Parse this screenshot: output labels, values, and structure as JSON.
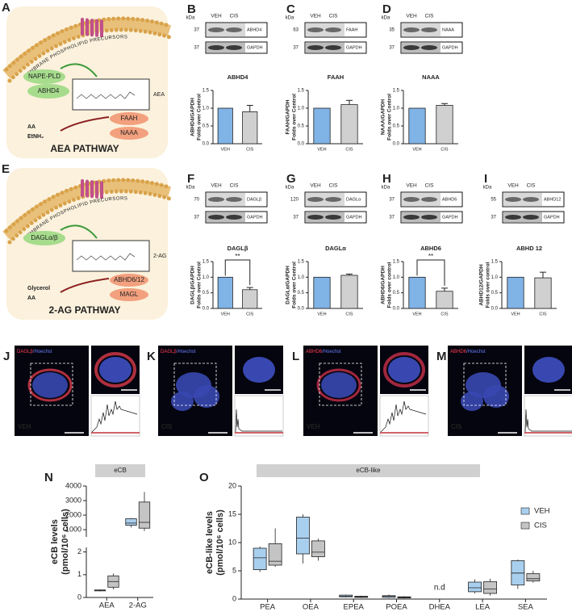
{
  "pathways": [
    {
      "panel": "A",
      "membrane": "MEMBRANE PHOSPHOLIPID PRECURSORS",
      "enzymes_synth": [
        "NAPE-PLD",
        "ABHD4"
      ],
      "product": "AEA",
      "enzymes_deg": [
        "FAAH",
        "NAAA"
      ],
      "metabolites": [
        "AA",
        "EtNH₂"
      ],
      "title": "AEA PATHWAY"
    },
    {
      "panel": "E",
      "membrane": "MEMBRANE PHOSPHOLIPID PRECURSORS",
      "enzymes_synth": [
        "DAGLα/β"
      ],
      "product": "2-AG",
      "enzymes_deg": [
        "ABHD6/12",
        "MAGL"
      ],
      "metabolites": [
        "Glycerol",
        "AA"
      ],
      "title": "2-AG PATHWAY"
    }
  ],
  "blots": [
    {
      "panel": "B",
      "kda": "kDa",
      "lanes": [
        "VEH",
        "CIS"
      ],
      "rows": [
        {
          "mw": "37",
          "protein": "ABHD4"
        },
        {
          "mw": "37",
          "protein": "GAPDH"
        }
      ]
    },
    {
      "panel": "C",
      "kda": "kDa",
      "lanes": [
        "VEH",
        "CIS"
      ],
      "rows": [
        {
          "mw": "63",
          "protein": "FAAH"
        },
        {
          "mw": "37",
          "protein": "GAPDH"
        }
      ]
    },
    {
      "panel": "D",
      "kda": "kDa",
      "lanes": [
        "VEH",
        "CIS"
      ],
      "rows": [
        {
          "mw": "35",
          "protein": "NAAA"
        },
        {
          "mw": "37",
          "protein": "GAPDH"
        }
      ]
    },
    {
      "panel": "F",
      "kda": "kDa",
      "lanes": [
        "VEH",
        "CIS"
      ],
      "rows": [
        {
          "mw": "70",
          "protein": "DAGLβ"
        },
        {
          "mw": "37",
          "protein": "GAPDH"
        }
      ]
    },
    {
      "panel": "G",
      "kda": "kDa",
      "lanes": [
        "VEH",
        "CIS"
      ],
      "rows": [
        {
          "mw": "120",
          "protein": "DAGLα"
        },
        {
          "mw": "37",
          "protein": "GAPDH"
        }
      ]
    },
    {
      "panel": "H",
      "kda": "kDa",
      "lanes": [
        "VEH",
        "CIS"
      ],
      "rows": [
        {
          "mw": "37",
          "protein": "ABHD6"
        },
        {
          "mw": "37",
          "protein": "GAPDH"
        }
      ]
    },
    {
      "panel": "I",
      "kda": "kDa",
      "lanes": [
        "VEH",
        "CIS"
      ],
      "rows": [
        {
          "mw": "55",
          "protein": "ABHD12"
        },
        {
          "mw": "37",
          "protein": "GAPDH"
        }
      ]
    }
  ],
  "micrographs": [
    {
      "panel": "J",
      "stain": [
        "DAGLβ",
        "/Hoechst"
      ],
      "condition": "VEH"
    },
    {
      "panel": "K",
      "stain": [
        "DAGLβ",
        "/Hoechst"
      ],
      "condition": "CIS"
    },
    {
      "panel": "L",
      "stain": [
        "ABHD6",
        "/Hoechst"
      ],
      "condition": "VEH"
    },
    {
      "panel": "M",
      "stain": [
        "ABHD6",
        "/Hoechst"
      ],
      "condition": "CIS"
    }
  ],
  "chart_data": [
    {
      "type": "bar",
      "title": "ABHD4",
      "ylabel": [
        "ABHD4/GAPDH",
        "Folds over Control"
      ],
      "categories": [
        "VEH",
        "CIS"
      ],
      "values": [
        1.0,
        0.9
      ],
      "errors": [
        null,
        0.18
      ],
      "colors": [
        "#80b3e6",
        "#d0d0d0"
      ],
      "ylim": [
        0,
        1.5
      ],
      "yticks": [
        {
          "value": 0,
          "label": "0.0"
        },
        0.5,
        {
          "value": 1,
          "label": "1.0"
        },
        1.5
      ]
    },
    {
      "type": "bar",
      "title": "FAAH",
      "ylabel": [
        "FAAH/GAPDH",
        "Folds over Control"
      ],
      "categories": [
        "VEH",
        "CIS"
      ],
      "values": [
        1.0,
        1.1
      ],
      "errors": [
        null,
        0.12
      ],
      "colors": [
        "#80b3e6",
        "#d0d0d0"
      ],
      "ylim": [
        0,
        1.5
      ],
      "yticks": [
        {
          "value": 0,
          "label": "0.0"
        },
        0.5,
        {
          "value": 1,
          "label": "1.0"
        },
        1.5
      ]
    },
    {
      "type": "bar",
      "title": "NAAA",
      "ylabel": [
        "NAAA/GAPDH",
        "Folds over Control"
      ],
      "categories": [
        "VEH",
        "CIS"
      ],
      "values": [
        1.0,
        1.08
      ],
      "errors": [
        null,
        0.05
      ],
      "colors": [
        "#80b3e6",
        "#d0d0d0"
      ],
      "ylim": [
        0,
        1.5
      ],
      "yticks": [
        {
          "value": 0,
          "label": "0.0"
        },
        0.5,
        {
          "value": 1,
          "label": "1.0"
        },
        1.5
      ]
    },
    {
      "type": "bar",
      "title": "DAGLβ",
      "ylabel": [
        "DAGLβ/GAPDH",
        "Folds over Control"
      ],
      "categories": [
        "VEH",
        "CIS"
      ],
      "values": [
        1.0,
        0.6
      ],
      "errors": [
        null,
        0.07
      ],
      "significance": "**",
      "colors": [
        "#80b3e6",
        "#d0d0d0"
      ],
      "ylim": [
        0,
        1.5
      ],
      "yticks": [
        {
          "value": 0,
          "label": "0.0"
        },
        0.5,
        {
          "value": 1,
          "label": "1.0"
        },
        1.5
      ]
    },
    {
      "type": "bar",
      "title": "DAGLα",
      "ylabel": [
        "DAGLα/GAPDH",
        "Folds over Control"
      ],
      "categories": [
        "VEH",
        "CIS"
      ],
      "values": [
        1.0,
        1.06
      ],
      "errors": [
        null,
        0.04
      ],
      "colors": [
        "#80b3e6",
        "#d0d0d0"
      ],
      "ylim": [
        0,
        1.5
      ],
      "yticks": [
        {
          "value": 0,
          "label": "0.0"
        },
        0.5,
        {
          "value": 1,
          "label": "1.0"
        },
        1.5
      ]
    },
    {
      "type": "bar",
      "title": "ABHD6",
      "ylabel": [
        "ABHD6/GAPDH",
        "Folds over control"
      ],
      "categories": [
        "VEH",
        "CIS"
      ],
      "values": [
        1.0,
        0.55
      ],
      "errors": [
        null,
        0.1
      ],
      "significance": "**",
      "colors": [
        "#80b3e6",
        "#d0d0d0"
      ],
      "ylim": [
        0,
        1.5
      ],
      "yticks": [
        {
          "value": 0,
          "label": "0.0"
        },
        0.5,
        {
          "value": 1,
          "label": "1.0"
        },
        1.5
      ]
    },
    {
      "type": "bar",
      "title": "ABHD 12",
      "ylabel": [
        "ABHD12/GAPDH",
        "Folds over control"
      ],
      "categories": [
        "VEH",
        "CIS"
      ],
      "values": [
        1.0,
        0.98
      ],
      "errors": [
        null,
        0.18
      ],
      "colors": [
        "#80b3e6",
        "#d0d0d0"
      ],
      "ylim": [
        0,
        1.5
      ],
      "yticks": [
        {
          "value": 0,
          "label": "0.0"
        },
        0.5,
        {
          "value": 1,
          "label": "1.0"
        },
        1.5
      ]
    },
    {
      "type": "box",
      "panel": "N",
      "header": "eCB",
      "ylabel": "eCB levels",
      "yunit": "(pmol/10⁶ cells)",
      "categories": [
        "AEA",
        "2-AG"
      ],
      "series": [
        {
          "color": "#a9cfee",
          "values": [
            [
              0.27,
              0.29,
              0.3,
              0.33,
              0.35
            ],
            [
              1150,
              1300,
              1450,
              1750,
              1800
            ]
          ]
        },
        {
          "color": "#c4c4c4",
          "values": [
            [
              0.35,
              0.45,
              0.7,
              0.95,
              1.05
            ],
            [
              900,
              1100,
              1500,
              2900,
              3600
            ]
          ]
        }
      ],
      "ylim": [
        [
          0,
          2.2
        ],
        [
          500,
          4000
        ]
      ],
      "yticks": [
        [
          0,
          1,
          2
        ],
        [
          1000,
          2000,
          3000,
          4000
        ]
      ]
    },
    {
      "type": "box",
      "panel": "O",
      "header": "eCB-like",
      "ylabel": "eCB-like levels",
      "yunit": "(pmol/10⁶ cells)",
      "categories": [
        "PEA",
        "OEA",
        "EPEA",
        "POEA",
        "DHEA",
        "LEA",
        "SEA"
      ],
      "series": [
        {
          "name": "VEH",
          "color": "#a9cfee",
          "values": [
            [
              4.8,
              5.2,
              7.3,
              9.0,
              9.3
            ],
            [
              6.3,
              8.0,
              10.8,
              14.5,
              15.0
            ],
            [
              0.3,
              0.4,
              0.5,
              0.7,
              0.8
            ],
            [
              0.2,
              0.3,
              0.5,
              0.6,
              0.8
            ],
            null,
            [
              1.0,
              1.3,
              2.0,
              3.0,
              3.5
            ],
            [
              1.8,
              2.5,
              4.6,
              6.8,
              7.0
            ]
          ]
        },
        {
          "name": "CIS",
          "color": "#c4c4c4",
          "values": [
            [
              5.7,
              6.0,
              6.7,
              9.8,
              12.5
            ],
            [
              6.8,
              7.5,
              8.3,
              10.3,
              10.7
            ],
            [
              0.2,
              0.3,
              0.4,
              0.5,
              0.6
            ],
            [
              0.1,
              0.2,
              0.3,
              0.4,
              0.5
            ],
            null,
            [
              0.6,
              1.0,
              1.8,
              3.1,
              3.6
            ],
            [
              2.9,
              3.2,
              3.6,
              4.5,
              5.0
            ]
          ]
        }
      ],
      "na_label": "n.d",
      "legend": "top-right",
      "ylim": [
        0,
        20
      ],
      "yticks": [
        0,
        5,
        10,
        15,
        20
      ]
    }
  ]
}
